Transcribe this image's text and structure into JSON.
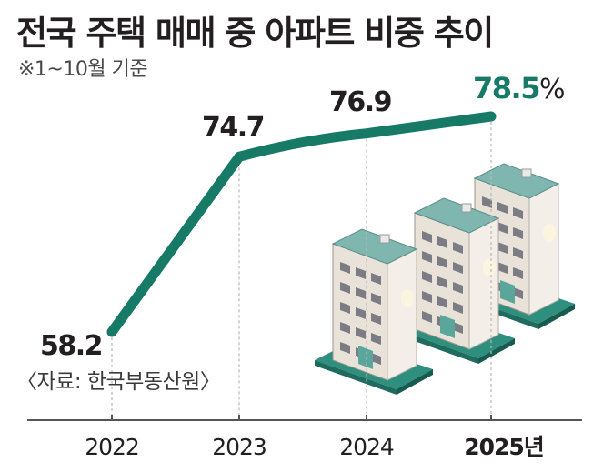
{
  "title": "전국 주택 매매 중 아파트 비중 추이",
  "subtitle": "※1~10월 기준",
  "source": "〈자료: 한국부동산원〉",
  "x_unit": "년",
  "y_unit": "%",
  "colors": {
    "line": "#167a66",
    "text": "#231f20",
    "axis": "#555555",
    "grid": "#b8b8b8"
  },
  "chart_data": {
    "type": "line",
    "title": "전국 주택 매매 중 아파트 비중 추이",
    "subtitle": "※1~10월 기준",
    "x": [
      "2022",
      "2023",
      "2024",
      "2025"
    ],
    "values": [
      58.2,
      74.7,
      76.9,
      78.5
    ],
    "value_labels": [
      "58.2",
      "74.7",
      "76.9",
      "78.5"
    ],
    "unit": "%",
    "x_unit_suffix": "년",
    "highlight_last": true,
    "grid": "vertical dashed",
    "legend": "none"
  }
}
